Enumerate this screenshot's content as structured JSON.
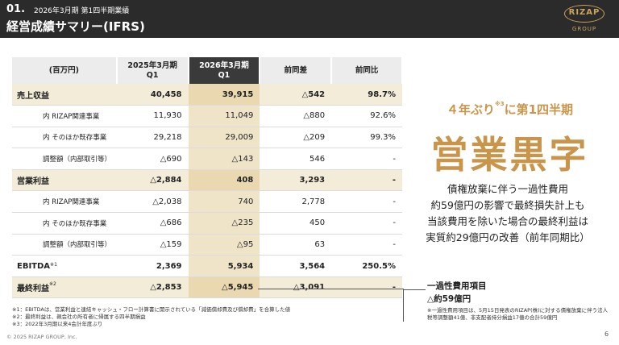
{
  "header": {
    "section_num": "01.",
    "subtitle": "2026年3月期 第1四半期業績",
    "title": "経営成績サマリー(IFRS)"
  },
  "logo": {
    "text": "RIZAP",
    "group": "GROUP"
  },
  "table": {
    "headers": [
      "(百万円)",
      "2025年3月期\nQ1",
      "2026年3月期\nQ1",
      "前同差",
      "前同比"
    ],
    "rows": [
      {
        "label": "売上収益",
        "note": "",
        "prev": "40,458",
        "cur": "39,915",
        "diff": "△542",
        "ratio": "98.7%"
      },
      {
        "label": "内 RIZAP関連事業",
        "note": "",
        "prev": "11,930",
        "cur": "11,049",
        "diff": "△880",
        "ratio": "92.6%"
      },
      {
        "label": "内 そのほか既存事業",
        "note": "",
        "prev": "29,218",
        "cur": "29,009",
        "diff": "△209",
        "ratio": "99.3%"
      },
      {
        "label": "調整額（内部取引等）",
        "note": "",
        "prev": "△690",
        "cur": "△143",
        "diff": "546",
        "ratio": "-"
      },
      {
        "label": "営業利益",
        "note": "",
        "prev": "△2,884",
        "cur": "408",
        "diff": "3,293",
        "ratio": "-"
      },
      {
        "label": "内 RIZAP関連事業",
        "note": "",
        "prev": "△2,038",
        "cur": "740",
        "diff": "2,778",
        "ratio": "-"
      },
      {
        "label": "内 そのほか既存事業",
        "note": "",
        "prev": "△686",
        "cur": "△235",
        "diff": "450",
        "ratio": "-"
      },
      {
        "label": "調整額（内部取引等）",
        "note": "",
        "prev": "△159",
        "cur": "△95",
        "diff": "63",
        "ratio": "-"
      },
      {
        "label": "EBITDA",
        "note": "※1",
        "prev": "2,369",
        "cur": "5,934",
        "diff": "3,564",
        "ratio": "250.5%"
      },
      {
        "label": "最終利益",
        "note": "※2",
        "prev": "△2,853",
        "cur": "△5,945",
        "diff": "△3,091",
        "ratio": "-"
      }
    ]
  },
  "highlight": {
    "years_text": "４年ぶり",
    "years_note": "※3",
    "years_suffix": "に第1四半期",
    "headline": "営業黒字",
    "lines": [
      "債権放棄に伴う一過性費用",
      "約59億円の影響で最終損失計上も",
      "当該費用を除いた場合の最終利益は",
      "実質約29億円の改善（前年同期比）"
    ]
  },
  "callout": {
    "title": "一過性費用項目",
    "value": "△約59億円",
    "note": "※一過性費用項目は、5月15日発表のRIZAP(株)に対する債権放棄に伴う法人税等調整額41億、非支配者持分損益17億の合計59億円"
  },
  "footnotes": [
    "※1：EBITDAは、営業利益と連結キャッシュ・フロー計算書に開示されている「減価償却費及び償却費」を合算した値",
    "※2：最終利益は、親会社の所有者に帰属する四半期損益",
    "※3：2022年3月期以来4会計年度ぶり"
  ],
  "copyright": "© 2025 RIZAP GROUP, Inc.",
  "page_number": "6"
}
